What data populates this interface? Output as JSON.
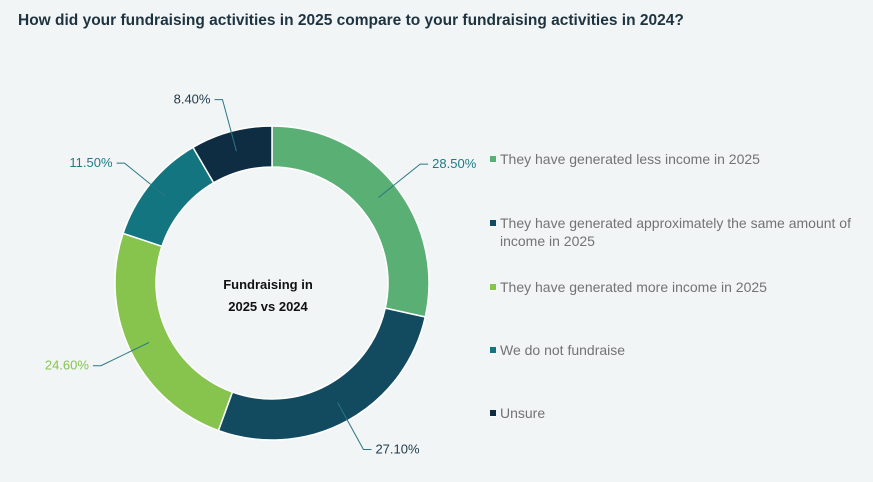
{
  "title": "How did your fundraising activities in 2025 compare to your fundraising activities in 2024?",
  "chart_data": {
    "type": "pie",
    "subtype": "donut",
    "center_label": [
      "Fundraising in",
      "2025 vs 2024"
    ],
    "unit": "%",
    "legend_position": "right",
    "slices": [
      {
        "label": "They have generated less income in 2025",
        "value": 28.5,
        "display": "28.50%",
        "color": "#5aaf74",
        "label_color": "#1e7a86"
      },
      {
        "label": "They have generated approximately the same amount of income in 2025",
        "value": 27.1,
        "display": "27.10%",
        "color": "#124a5f",
        "label_color": "#1d3a4a"
      },
      {
        "label": "They have generated more income in 2025",
        "value": 24.6,
        "display": "24.60%",
        "color": "#86c44e",
        "label_color": "#86c44e"
      },
      {
        "label": "We do not fundraise",
        "value": 11.5,
        "display": "11.50%",
        "color": "#137580",
        "label_color": "#1e7a86"
      },
      {
        "label": "Unsure",
        "value": 8.4,
        "display": "8.40%",
        "color": "#0e2d42",
        "label_color": "#1d3a4a"
      }
    ]
  }
}
